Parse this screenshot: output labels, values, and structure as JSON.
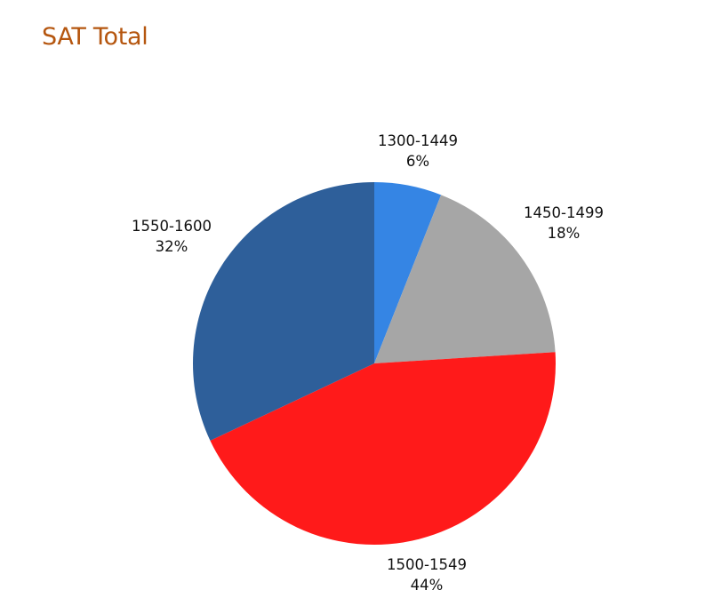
{
  "page": {
    "heading": "SAT Total",
    "heading_color": "#B5560F"
  },
  "chart_data": {
    "type": "pie",
    "title": "",
    "start_angle_deg": 0,
    "direction": "clockwise",
    "slices": [
      {
        "label": "1300-1449",
        "value": 6,
        "value_label": "6%",
        "color": "#3585E4"
      },
      {
        "label": "1450-1499",
        "value": 18,
        "value_label": "18%",
        "color": "#A6A6A6"
      },
      {
        "label": "1500-1549",
        "value": 44,
        "value_label": "44%",
        "color": "#FF1A1A"
      },
      {
        "label": "1550-1600",
        "value": 32,
        "value_label": "32%",
        "color": "#2E5F9A"
      }
    ]
  }
}
